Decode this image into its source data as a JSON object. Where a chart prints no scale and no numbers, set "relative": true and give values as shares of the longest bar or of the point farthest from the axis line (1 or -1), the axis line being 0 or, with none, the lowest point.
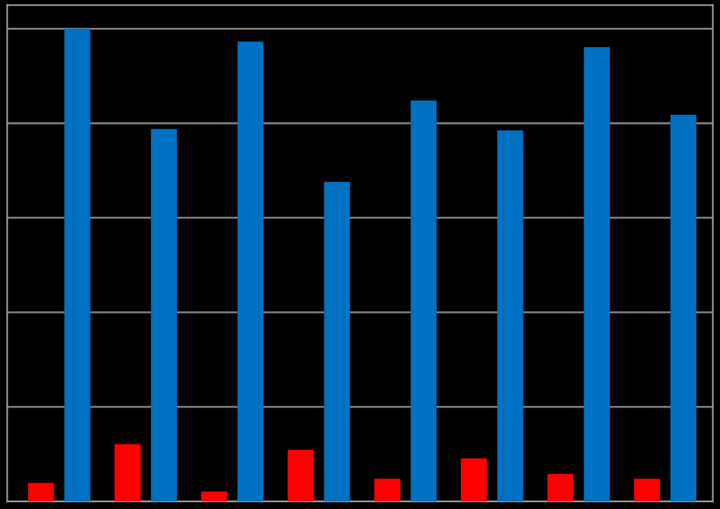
{
  "chart_data": {
    "type": "bar",
    "relative": true,
    "grid": "y",
    "legend": false,
    "categories": [
      null,
      null,
      null,
      null,
      null,
      null,
      null,
      null
    ],
    "series": [
      {
        "color": "#ff0000",
        "values": [
          0.039,
          0.121,
          0.021,
          0.109,
          0.048,
          0.091,
          0.058,
          0.048
        ]
      },
      {
        "color": "#0070c0",
        "values": [
          1,
          0.788,
          0.973,
          0.676,
          0.848,
          0.785,
          0.961,
          0.818
        ]
      }
    ]
  }
}
